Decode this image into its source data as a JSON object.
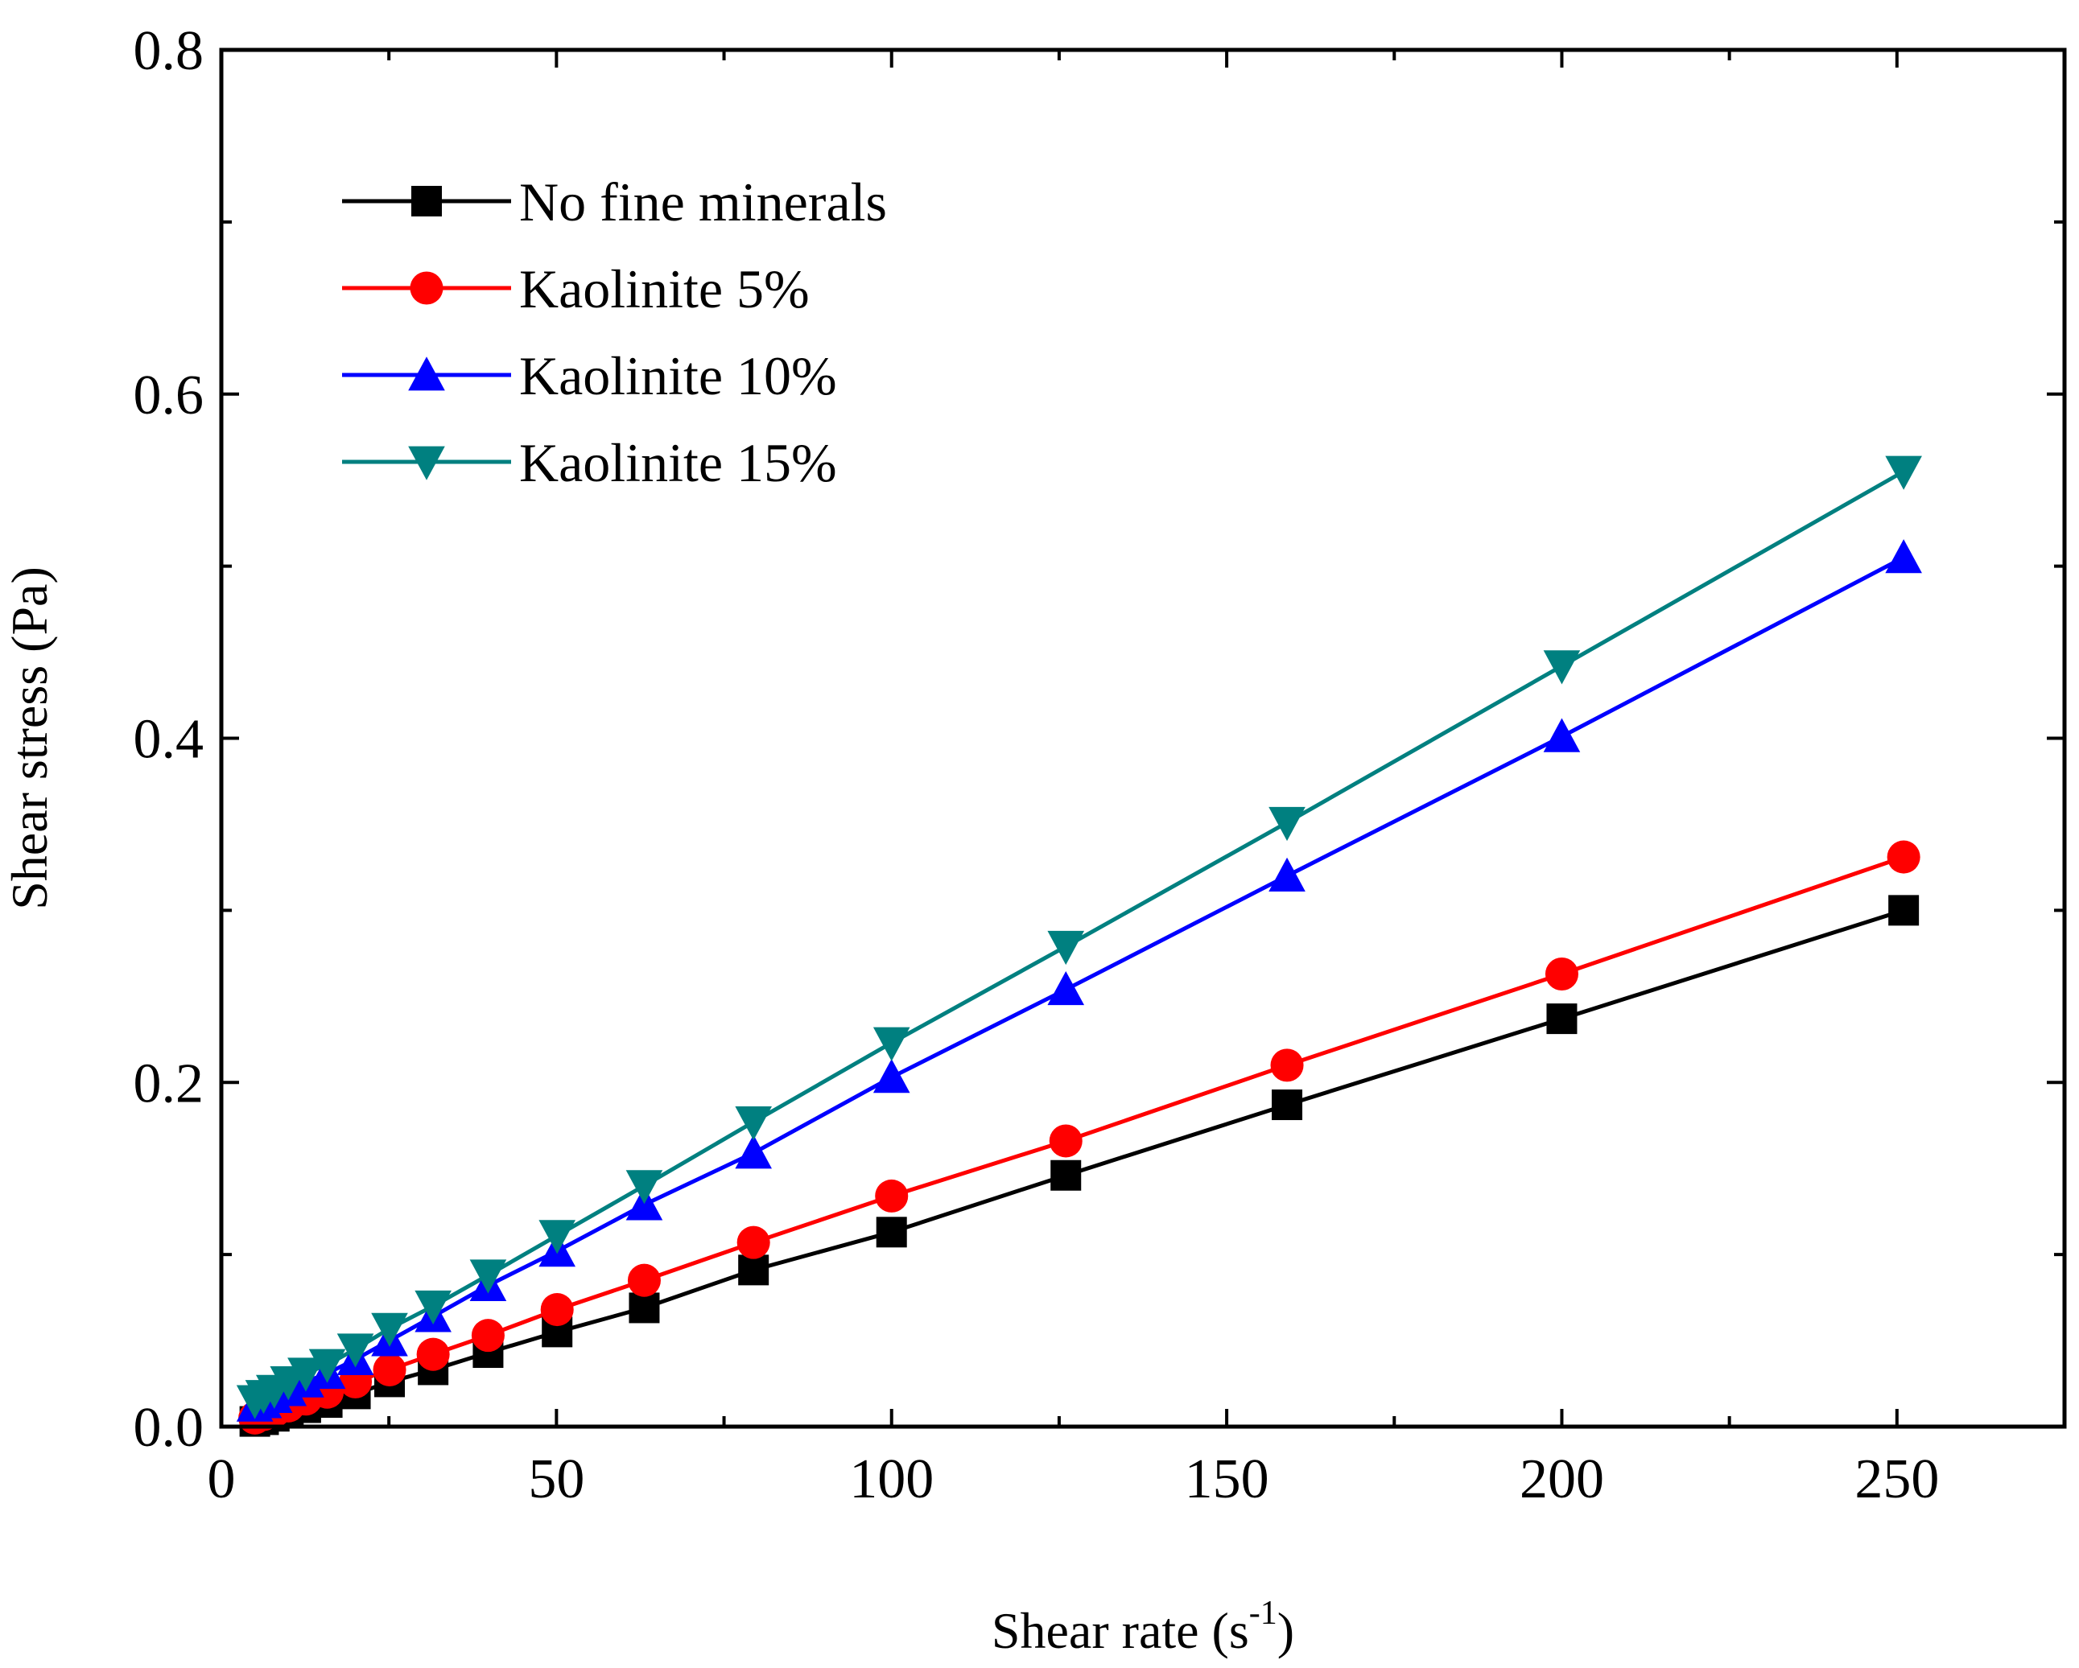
{
  "chart_data": {
    "type": "line",
    "title": "",
    "xlabel": "Shear rate (s",
    "xlabel_sup": "-1",
    "xlabel_close": ")",
    "ylabel": "Shear stress (Pa)",
    "xlim": [
      0,
      275
    ],
    "ylim": [
      0,
      0.8
    ],
    "xticks": [
      0,
      50,
      100,
      150,
      200,
      250
    ],
    "xtick_labels": [
      "0",
      "50",
      "100",
      "150",
      "200",
      "250"
    ],
    "xminor": [
      25,
      75,
      125,
      175,
      225,
      275
    ],
    "yticks": [
      0,
      0.2,
      0.4,
      0.6,
      0.8
    ],
    "ytick_labels": [
      "0.0",
      "0.2",
      "0.4",
      "0.6",
      "0.8"
    ],
    "yminor": [
      0.1,
      0.3,
      0.5,
      0.7
    ],
    "grid": false,
    "legend_position": "top-left",
    "series": [
      {
        "name": "No fine minerals",
        "color": "#000000",
        "marker": "square",
        "x": [
          5,
          6.3,
          7.9,
          10,
          12.6,
          15.8,
          20,
          25.1,
          31.6,
          39.8,
          50.1,
          63.1,
          79.4,
          100,
          126,
          159,
          200,
          251
        ],
        "y": [
          0.003,
          0.004,
          0.006,
          0.008,
          0.011,
          0.014,
          0.019,
          0.026,
          0.033,
          0.043,
          0.055,
          0.069,
          0.091,
          0.113,
          0.146,
          0.187,
          0.237,
          0.3
        ]
      },
      {
        "name": "Kaolinite 5%",
        "color": "#ff0000",
        "marker": "circle",
        "x": [
          5,
          6.3,
          7.9,
          10,
          12.6,
          15.8,
          20,
          25.1,
          31.6,
          39.8,
          50.1,
          63.1,
          79.4,
          100,
          126,
          159,
          200,
          251
        ],
        "y": [
          0.005,
          0.007,
          0.009,
          0.012,
          0.016,
          0.02,
          0.026,
          0.033,
          0.042,
          0.053,
          0.068,
          0.085,
          0.107,
          0.134,
          0.166,
          0.21,
          0.263,
          0.331
        ]
      },
      {
        "name": "Kaolinite 10%",
        "color": "#0000ff",
        "marker": "triangle-up",
        "x": [
          5,
          6.3,
          7.9,
          10,
          12.6,
          15.8,
          20,
          25.1,
          31.6,
          39.8,
          50.1,
          63.1,
          79.4,
          100,
          126,
          159,
          200,
          251
        ],
        "y": [
          0.012,
          0.014,
          0.017,
          0.021,
          0.026,
          0.031,
          0.039,
          0.05,
          0.064,
          0.082,
          0.102,
          0.129,
          0.159,
          0.203,
          0.254,
          0.32,
          0.401,
          0.505
        ]
      },
      {
        "name": "Kaolinite 15%",
        "color": "#008080",
        "marker": "triangle-down",
        "x": [
          5,
          6.3,
          7.9,
          10,
          12.6,
          15.8,
          20,
          25.1,
          31.6,
          39.8,
          50.1,
          63.1,
          79.4,
          100,
          126,
          159,
          200,
          251
        ],
        "y": [
          0.015,
          0.018,
          0.021,
          0.026,
          0.031,
          0.036,
          0.045,
          0.057,
          0.07,
          0.088,
          0.111,
          0.14,
          0.177,
          0.223,
          0.279,
          0.351,
          0.442,
          0.555
        ]
      }
    ]
  }
}
